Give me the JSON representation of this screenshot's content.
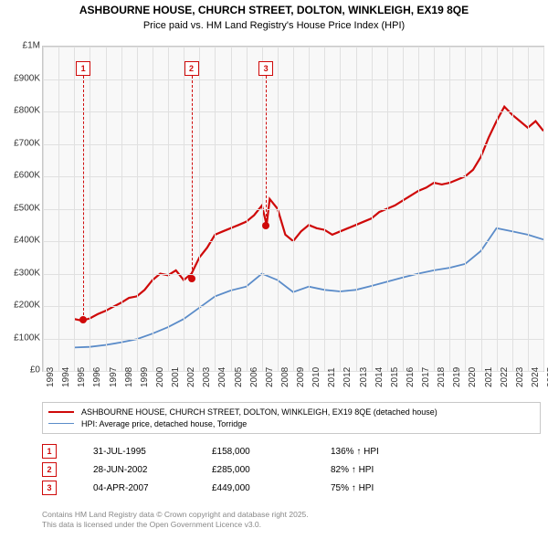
{
  "title_line1": "ASHBOURNE HOUSE, CHURCH STREET, DOLTON, WINKLEIGH, EX19 8QE",
  "title_line2": "Price paid vs. HM Land Registry's House Price Index (HPI)",
  "chart": {
    "type": "line",
    "plot_bg": "#f8f8f8",
    "grid_color": "#e0e0e0",
    "border_color": "#c8c8c8",
    "x_start_year": 1993,
    "x_end_year": 2025,
    "y_min": 0,
    "y_max": 1000000,
    "y_tick_step": 100000,
    "y_tick_labels": [
      "£0",
      "£100K",
      "£200K",
      "£300K",
      "£400K",
      "£500K",
      "£600K",
      "£700K",
      "£800K",
      "£900K",
      "£1M"
    ],
    "x_tick_years": [
      1993,
      1994,
      1995,
      1996,
      1997,
      1998,
      1999,
      2000,
      2001,
      2002,
      2003,
      2004,
      2005,
      2006,
      2007,
      2008,
      2009,
      2010,
      2011,
      2012,
      2013,
      2014,
      2015,
      2016,
      2017,
      2018,
      2019,
      2020,
      2021,
      2022,
      2023,
      2024,
      2025
    ],
    "series": [
      {
        "name": "ashbourne",
        "label": "ASHBOURNE HOUSE, CHURCH STREET, DOLTON, WINKLEIGH, EX19 8QE (detached house)",
        "color": "#cf0909",
        "width": 2.2,
        "points": [
          [
            1995.0,
            160000
          ],
          [
            1995.5,
            155000
          ],
          [
            1996.0,
            162000
          ],
          [
            1996.5,
            175000
          ],
          [
            1997.0,
            185000
          ],
          [
            1997.5,
            198000
          ],
          [
            1998.0,
            210000
          ],
          [
            1998.5,
            225000
          ],
          [
            1999.0,
            230000
          ],
          [
            1999.5,
            250000
          ],
          [
            2000.0,
            280000
          ],
          [
            2000.5,
            300000
          ],
          [
            2001.0,
            295000
          ],
          [
            2001.5,
            310000
          ],
          [
            2002.0,
            280000
          ],
          [
            2002.5,
            300000
          ],
          [
            2003.0,
            350000
          ],
          [
            2003.5,
            380000
          ],
          [
            2004.0,
            420000
          ],
          [
            2004.5,
            430000
          ],
          [
            2005.0,
            440000
          ],
          [
            2005.5,
            450000
          ],
          [
            2006.0,
            460000
          ],
          [
            2006.5,
            480000
          ],
          [
            2007.0,
            510000
          ],
          [
            2007.3,
            450000
          ],
          [
            2007.5,
            530000
          ],
          [
            2008.0,
            500000
          ],
          [
            2008.5,
            420000
          ],
          [
            2009.0,
            400000
          ],
          [
            2009.5,
            430000
          ],
          [
            2010.0,
            450000
          ],
          [
            2010.5,
            440000
          ],
          [
            2011.0,
            435000
          ],
          [
            2011.5,
            420000
          ],
          [
            2012.0,
            430000
          ],
          [
            2012.5,
            440000
          ],
          [
            2013.0,
            450000
          ],
          [
            2013.5,
            460000
          ],
          [
            2014.0,
            470000
          ],
          [
            2014.5,
            490000
          ],
          [
            2015.0,
            500000
          ],
          [
            2015.5,
            510000
          ],
          [
            2016.0,
            525000
          ],
          [
            2016.5,
            540000
          ],
          [
            2017.0,
            555000
          ],
          [
            2017.5,
            565000
          ],
          [
            2018.0,
            580000
          ],
          [
            2018.5,
            575000
          ],
          [
            2019.0,
            580000
          ],
          [
            2019.5,
            590000
          ],
          [
            2020.0,
            600000
          ],
          [
            2020.5,
            620000
          ],
          [
            2021.0,
            660000
          ],
          [
            2021.5,
            720000
          ],
          [
            2022.0,
            770000
          ],
          [
            2022.5,
            815000
          ],
          [
            2023.0,
            790000
          ],
          [
            2023.5,
            770000
          ],
          [
            2024.0,
            750000
          ],
          [
            2024.5,
            770000
          ],
          [
            2025.0,
            740000
          ]
        ]
      },
      {
        "name": "hpi",
        "label": "HPI: Average price, detached house, Torridge",
        "color": "#5b8cc9",
        "width": 1.8,
        "points": [
          [
            1995.0,
            72000
          ],
          [
            1996.0,
            74000
          ],
          [
            1997.0,
            80000
          ],
          [
            1998.0,
            88000
          ],
          [
            1999.0,
            98000
          ],
          [
            2000.0,
            115000
          ],
          [
            2001.0,
            135000
          ],
          [
            2002.0,
            160000
          ],
          [
            2003.0,
            195000
          ],
          [
            2004.0,
            230000
          ],
          [
            2005.0,
            248000
          ],
          [
            2006.0,
            260000
          ],
          [
            2007.0,
            300000
          ],
          [
            2008.0,
            280000
          ],
          [
            2009.0,
            243000
          ],
          [
            2010.0,
            260000
          ],
          [
            2011.0,
            250000
          ],
          [
            2012.0,
            245000
          ],
          [
            2013.0,
            250000
          ],
          [
            2014.0,
            262000
          ],
          [
            2015.0,
            275000
          ],
          [
            2016.0,
            288000
          ],
          [
            2017.0,
            300000
          ],
          [
            2018.0,
            310000
          ],
          [
            2019.0,
            318000
          ],
          [
            2020.0,
            330000
          ],
          [
            2021.0,
            370000
          ],
          [
            2022.0,
            440000
          ],
          [
            2023.0,
            430000
          ],
          [
            2024.0,
            420000
          ],
          [
            2025.0,
            405000
          ]
        ]
      }
    ],
    "callouts": [
      {
        "n": "1",
        "year": 1995.58,
        "value": 158000
      },
      {
        "n": "2",
        "year": 2002.49,
        "value": 285000
      },
      {
        "n": "3",
        "year": 2007.26,
        "value": 449000
      }
    ]
  },
  "legend": {
    "items": [
      {
        "color": "#cf0909",
        "width": 2.2,
        "label": "ASHBOURNE HOUSE, CHURCH STREET, DOLTON, WINKLEIGH, EX19 8QE (detached house)"
      },
      {
        "color": "#5b8cc9",
        "width": 1.8,
        "label": "HPI: Average price, detached house, Torridge"
      }
    ]
  },
  "sales": [
    {
      "n": "1",
      "date": "31-JUL-1995",
      "price": "£158,000",
      "pct": "136% ↑ HPI"
    },
    {
      "n": "2",
      "date": "28-JUN-2002",
      "price": "£285,000",
      "pct": "82% ↑ HPI"
    },
    {
      "n": "3",
      "date": "04-APR-2007",
      "price": "£449,000",
      "pct": "75% ↑ HPI"
    }
  ],
  "footer_line1": "Contains HM Land Registry data © Crown copyright and database right 2025.",
  "footer_line2": "This data is licensed under the Open Government Licence v3.0."
}
